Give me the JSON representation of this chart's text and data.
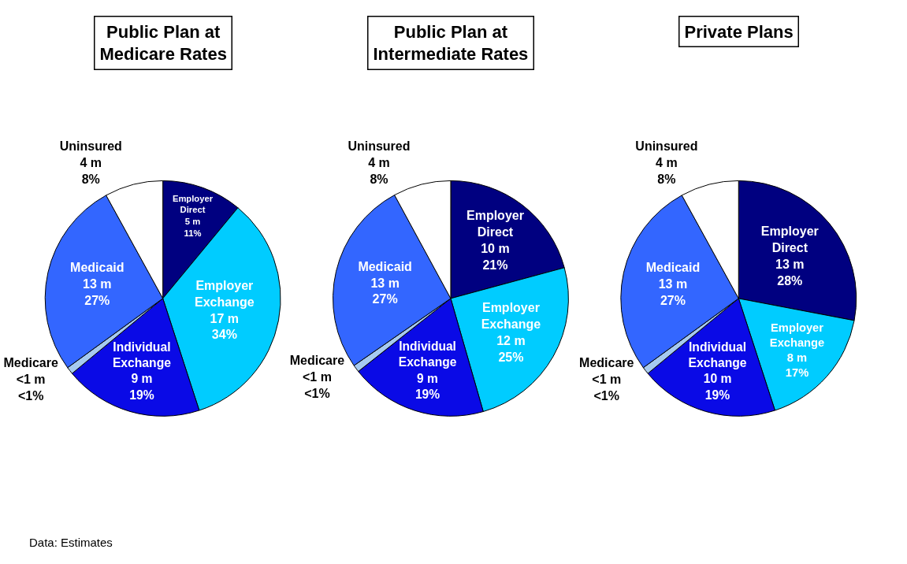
{
  "chart_data": [
    {
      "type": "pie",
      "title": "Public Plan at\nMedicare Rates",
      "categories": [
        "Employer Direct",
        "Employer Exchange",
        "Individual Exchange",
        "Medicare",
        "Medicaid",
        "Uninsured"
      ],
      "values": [
        11,
        34,
        19,
        1,
        27,
        8
      ],
      "value_labels": [
        "5 m\n11%",
        "17 m\n34%",
        "9 m\n19%",
        "<1 m\n<1%",
        "13 m\n27%",
        "4 m\n8%"
      ],
      "colors": [
        "#000080",
        "#00ccff",
        "#0a0ae6",
        "#a6caf0",
        "#3366ff",
        "#ffffff"
      ],
      "legend": false,
      "annotations": [
        "Data: Estimates"
      ]
    },
    {
      "type": "pie",
      "title": "Public Plan at\nIntermediate Rates",
      "categories": [
        "Employer Direct",
        "Employer Exchange",
        "Individual Exchange",
        "Medicare",
        "Medicaid",
        "Uninsured"
      ],
      "values": [
        21,
        25,
        19,
        1,
        27,
        8
      ],
      "value_labels": [
        "10 m\n21%",
        "12 m\n25%",
        "9 m\n19%",
        "<1 m\n<1%",
        "13 m\n27%",
        "4 m\n8%"
      ],
      "colors": [
        "#000080",
        "#00ccff",
        "#0a0ae6",
        "#a6caf0",
        "#3366ff",
        "#ffffff"
      ],
      "legend": false
    },
    {
      "type": "pie",
      "title": "Private Plans",
      "categories": [
        "Employer Direct",
        "Employer Exchange",
        "Individual Exchange",
        "Medicare",
        "Medicaid",
        "Uninsured"
      ],
      "values": [
        28,
        17,
        19,
        1,
        27,
        8
      ],
      "value_labels": [
        "13 m\n28%",
        "8 m\n17%",
        "10 m\n19%",
        "<1 m\n<1%",
        "13 m\n27%",
        "4 m\n8%"
      ],
      "colors": [
        "#000080",
        "#00ccff",
        "#0a0ae6",
        "#a6caf0",
        "#3366ff",
        "#ffffff"
      ],
      "legend": false
    }
  ]
}
